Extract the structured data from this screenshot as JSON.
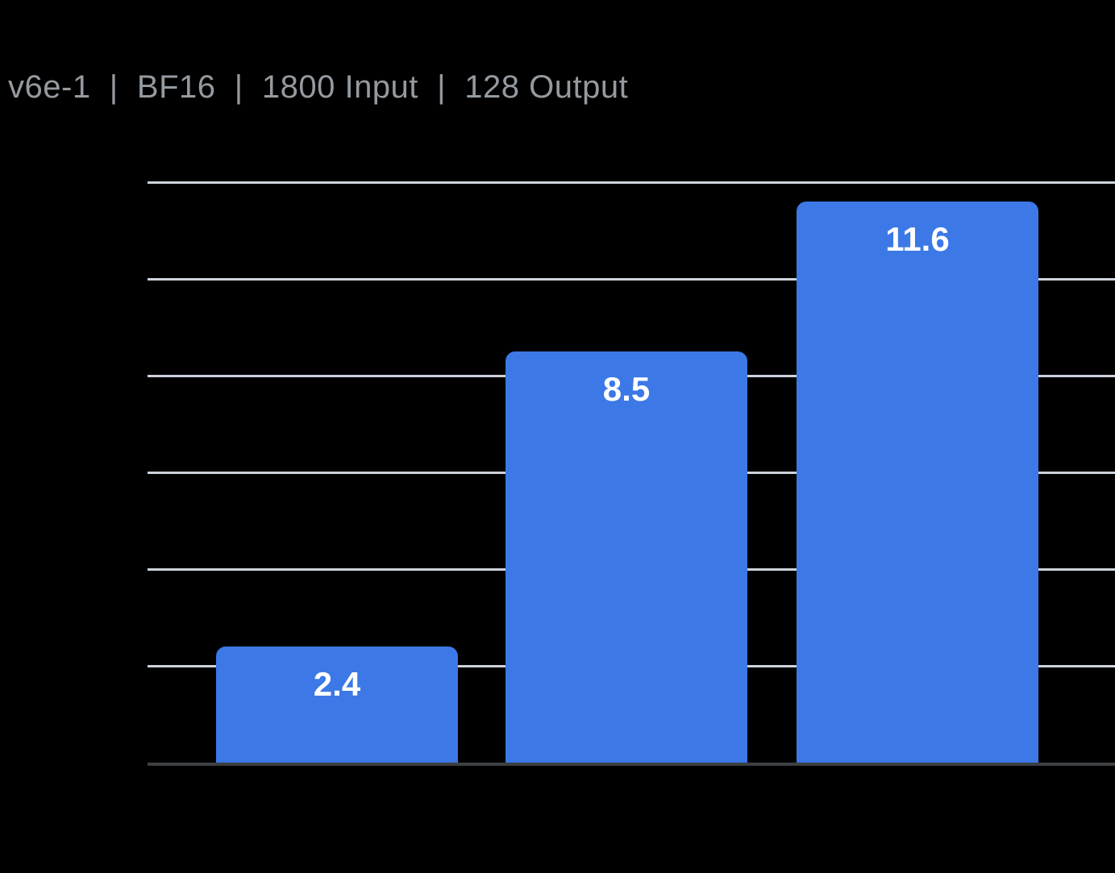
{
  "title": "v6e-1  |  BF16  |  1800 Input  |  128 Output",
  "chart_data": {
    "type": "bar",
    "title": "v6e-1  |  BF16  |  1800 Input  |  128 Output",
    "categories": [
      "",
      "",
      ""
    ],
    "values": [
      2.4,
      8.5,
      11.6
    ],
    "data_labels": [
      "2.4",
      "8.5",
      "11.6"
    ],
    "xlabel": "",
    "ylabel": "",
    "ylim": [
      0,
      12
    ],
    "yticks": [
      0,
      2,
      4,
      6,
      8,
      10,
      12
    ],
    "grid": "horizontal",
    "legend": "none",
    "colors": {
      "bar": "#3C78E6",
      "data_label": "#FFFFFF",
      "gridline": "#CDD3DC",
      "axis_line": "#3C4043",
      "title": "#949AA0",
      "background": "#000000"
    }
  }
}
